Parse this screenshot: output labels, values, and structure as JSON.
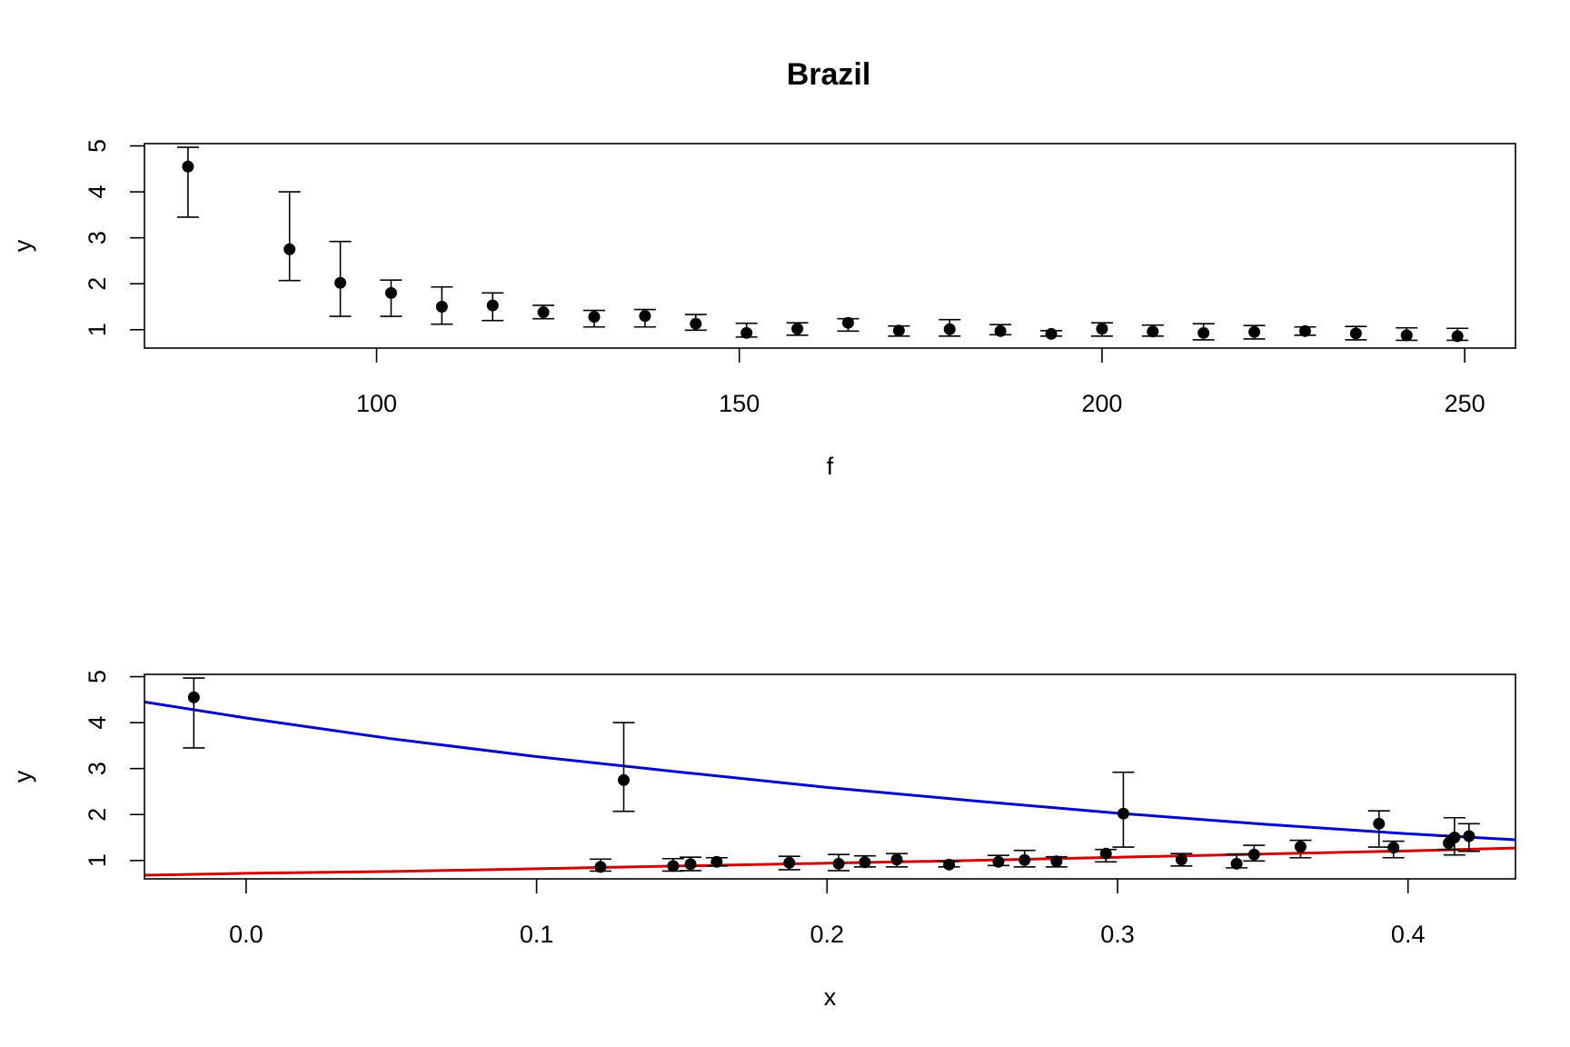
{
  "chart_data": [
    {
      "type": "scatter",
      "title": "Brazil",
      "xlabel": "f",
      "ylabel": "y",
      "xlim": [
        68,
        257
      ],
      "ylim": [
        0.6,
        5.05
      ],
      "xticks": [
        100,
        150,
        200,
        250
      ],
      "yticks": [
        1,
        2,
        3,
        4,
        5
      ],
      "grid": false,
      "points": [
        {
          "x": 74,
          "y": 4.55,
          "lo": 3.45,
          "hi": 4.97
        },
        {
          "x": 88,
          "y": 2.75,
          "lo": 2.07,
          "hi": 4.0
        },
        {
          "x": 95,
          "y": 2.02,
          "lo": 1.29,
          "hi": 2.92
        },
        {
          "x": 102,
          "y": 1.8,
          "lo": 1.29,
          "hi": 2.08
        },
        {
          "x": 109,
          "y": 1.5,
          "lo": 1.12,
          "hi": 1.93
        },
        {
          "x": 116,
          "y": 1.53,
          "lo": 1.2,
          "hi": 1.8
        },
        {
          "x": 123,
          "y": 1.38,
          "lo": 1.24,
          "hi": 1.53
        },
        {
          "x": 130,
          "y": 1.28,
          "lo": 1.06,
          "hi": 1.42
        },
        {
          "x": 137,
          "y": 1.3,
          "lo": 1.06,
          "hi": 1.44
        },
        {
          "x": 144,
          "y": 1.13,
          "lo": 0.99,
          "hi": 1.33
        },
        {
          "x": 151,
          "y": 0.93,
          "lo": 0.84,
          "hi": 1.14
        },
        {
          "x": 158,
          "y": 1.02,
          "lo": 0.88,
          "hi": 1.15
        },
        {
          "x": 165,
          "y": 1.15,
          "lo": 0.97,
          "hi": 1.24
        },
        {
          "x": 172,
          "y": 0.98,
          "lo": 0.86,
          "hi": 1.08
        },
        {
          "x": 179,
          "y": 1.01,
          "lo": 0.86,
          "hi": 1.22
        },
        {
          "x": 186,
          "y": 0.97,
          "lo": 0.89,
          "hi": 1.11
        },
        {
          "x": 193,
          "y": 0.91,
          "lo": 0.86,
          "hi": 0.98
        },
        {
          "x": 200,
          "y": 1.02,
          "lo": 0.86,
          "hi": 1.15
        },
        {
          "x": 207,
          "y": 0.96,
          "lo": 0.86,
          "hi": 1.1
        },
        {
          "x": 214,
          "y": 0.93,
          "lo": 0.78,
          "hi": 1.13
        },
        {
          "x": 221,
          "y": 0.95,
          "lo": 0.8,
          "hi": 1.09
        },
        {
          "x": 228,
          "y": 0.97,
          "lo": 0.88,
          "hi": 1.06
        },
        {
          "x": 235,
          "y": 0.92,
          "lo": 0.78,
          "hi": 1.07
        },
        {
          "x": 242,
          "y": 0.88,
          "lo": 0.77,
          "hi": 1.04
        },
        {
          "x": 249,
          "y": 0.86,
          "lo": 0.77,
          "hi": 1.03
        }
      ]
    },
    {
      "type": "scatter",
      "xlabel": "x",
      "ylabel": "y",
      "xlim": [
        -0.035,
        0.437
      ],
      "ylim": [
        0.6,
        5.05
      ],
      "xticks": [
        0.0,
        0.1,
        0.2,
        0.3,
        0.4
      ],
      "xtick_labels": [
        "0.0",
        "0.1",
        "0.2",
        "0.3",
        "0.4"
      ],
      "yticks": [
        1,
        2,
        3,
        4,
        5
      ],
      "grid": false,
      "points": [
        {
          "x": -0.018,
          "y": 4.55,
          "lo": 3.45,
          "hi": 4.97
        },
        {
          "x": 0.13,
          "y": 2.75,
          "lo": 2.07,
          "hi": 4.0
        },
        {
          "x": 0.302,
          "y": 2.02,
          "lo": 1.29,
          "hi": 2.92
        },
        {
          "x": 0.39,
          "y": 1.8,
          "lo": 1.29,
          "hi": 2.08
        },
        {
          "x": 0.416,
          "y": 1.5,
          "lo": 1.12,
          "hi": 1.93
        },
        {
          "x": 0.421,
          "y": 1.53,
          "lo": 1.2,
          "hi": 1.8
        },
        {
          "x": 0.414,
          "y": 1.38,
          "lo": 1.24,
          "hi": 1.53
        },
        {
          "x": 0.395,
          "y": 1.28,
          "lo": 1.06,
          "hi": 1.42
        },
        {
          "x": 0.363,
          "y": 1.3,
          "lo": 1.06,
          "hi": 1.44
        },
        {
          "x": 0.347,
          "y": 1.13,
          "lo": 0.99,
          "hi": 1.33
        },
        {
          "x": 0.341,
          "y": 0.93,
          "lo": 0.84,
          "hi": 1.14
        },
        {
          "x": 0.322,
          "y": 1.02,
          "lo": 0.88,
          "hi": 1.15
        },
        {
          "x": 0.296,
          "y": 1.15,
          "lo": 0.97,
          "hi": 1.24
        },
        {
          "x": 0.279,
          "y": 0.98,
          "lo": 0.86,
          "hi": 1.08
        },
        {
          "x": 0.268,
          "y": 1.01,
          "lo": 0.86,
          "hi": 1.22
        },
        {
          "x": 0.259,
          "y": 0.97,
          "lo": 0.89,
          "hi": 1.11
        },
        {
          "x": 0.242,
          "y": 0.91,
          "lo": 0.86,
          "hi": 0.98
        },
        {
          "x": 0.224,
          "y": 1.02,
          "lo": 0.86,
          "hi": 1.15
        },
        {
          "x": 0.213,
          "y": 0.96,
          "lo": 0.86,
          "hi": 1.1
        },
        {
          "x": 0.204,
          "y": 0.93,
          "lo": 0.78,
          "hi": 1.13
        },
        {
          "x": 0.187,
          "y": 0.95,
          "lo": 0.8,
          "hi": 1.09
        },
        {
          "x": 0.162,
          "y": 0.97,
          "lo": 0.88,
          "hi": 1.06
        },
        {
          "x": 0.153,
          "y": 0.92,
          "lo": 0.78,
          "hi": 1.07
        },
        {
          "x": 0.147,
          "y": 0.88,
          "lo": 0.77,
          "hi": 1.04
        },
        {
          "x": 0.122,
          "y": 0.86,
          "lo": 0.77,
          "hi": 1.03
        }
      ],
      "curves": [
        {
          "color": "#0000cc",
          "points": [
            [
              -0.035,
              4.45
            ],
            [
              0.0,
              4.1
            ],
            [
              0.05,
              3.65
            ],
            [
              0.1,
              3.26
            ],
            [
              0.15,
              2.92
            ],
            [
              0.2,
              2.59
            ],
            [
              0.25,
              2.3
            ],
            [
              0.3,
              2.03
            ],
            [
              0.35,
              1.79
            ],
            [
              0.4,
              1.58
            ],
            [
              0.437,
              1.45
            ]
          ]
        },
        {
          "color": "#cc0000",
          "points": [
            [
              -0.035,
              0.68
            ],
            [
              0.0,
              0.72
            ],
            [
              0.05,
              0.76
            ],
            [
              0.1,
              0.82
            ],
            [
              0.15,
              0.88
            ],
            [
              0.2,
              0.94
            ],
            [
              0.25,
              1.0
            ],
            [
              0.3,
              1.07
            ],
            [
              0.35,
              1.14
            ],
            [
              0.4,
              1.21
            ],
            [
              0.437,
              1.27
            ]
          ]
        }
      ]
    }
  ]
}
